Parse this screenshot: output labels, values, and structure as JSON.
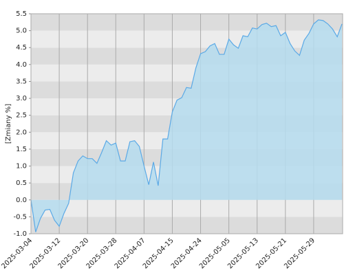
{
  "chart_data": {
    "type": "area",
    "ylabel": "[Zmiany %]",
    "categories": [
      "2025-03-04",
      null,
      null,
      null,
      null,
      null,
      "2025-03-12",
      null,
      null,
      null,
      null,
      null,
      "2025-03-20",
      null,
      null,
      null,
      null,
      null,
      "2025-03-28",
      null,
      null,
      null,
      null,
      null,
      "2025-04-07",
      null,
      null,
      null,
      null,
      null,
      "2025-04-15",
      null,
      null,
      null,
      null,
      null,
      "2025-04-24",
      null,
      null,
      null,
      null,
      null,
      "2025-05-05",
      null,
      null,
      null,
      null,
      null,
      "2025-05-13",
      null,
      null,
      null,
      null,
      null,
      "2025-05-21",
      null,
      null,
      null,
      null,
      null,
      "2025-05-29",
      null,
      null,
      null,
      null,
      null,
      null
    ],
    "values": [
      0.0,
      -0.95,
      -0.55,
      -0.3,
      -0.28,
      -0.6,
      -0.78,
      -0.4,
      -0.1,
      0.8,
      1.15,
      1.3,
      1.22,
      1.22,
      1.08,
      1.4,
      1.75,
      1.62,
      1.68,
      1.15,
      1.15,
      1.72,
      1.75,
      1.58,
      1.0,
      0.45,
      1.12,
      0.42,
      1.8,
      1.8,
      2.6,
      2.95,
      3.02,
      3.32,
      3.3,
      3.9,
      4.32,
      4.38,
      4.55,
      4.62,
      4.3,
      4.3,
      4.75,
      4.58,
      4.48,
      4.85,
      4.82,
      5.08,
      5.05,
      5.18,
      5.22,
      5.12,
      5.15,
      4.85,
      4.95,
      4.62,
      4.4,
      4.27,
      4.72,
      4.92,
      5.2,
      5.32,
      5.3,
      5.2,
      5.05,
      4.82,
      5.2
    ],
    "color": "#5aa9e6",
    "fill": "#b5dcef",
    "ylim": [
      -1.0,
      5.5
    ],
    "yticks": [
      {
        "value": -1,
        "label": "-1.0"
      },
      -0.5,
      {
        "value": 0,
        "label": "0.0"
      },
      0.5,
      {
        "value": 1,
        "label": "1.0"
      },
      1.5,
      {
        "value": 2,
        "label": "2.0"
      },
      2.5,
      {
        "value": 3,
        "label": "3.0"
      },
      3.5,
      {
        "value": 4,
        "label": "4.0"
      },
      4.5,
      {
        "value": 5,
        "label": "5.0"
      },
      5.5
    ],
    "band_colors": [
      "#dcdcdc",
      "#ececec"
    ],
    "grid": true
  }
}
